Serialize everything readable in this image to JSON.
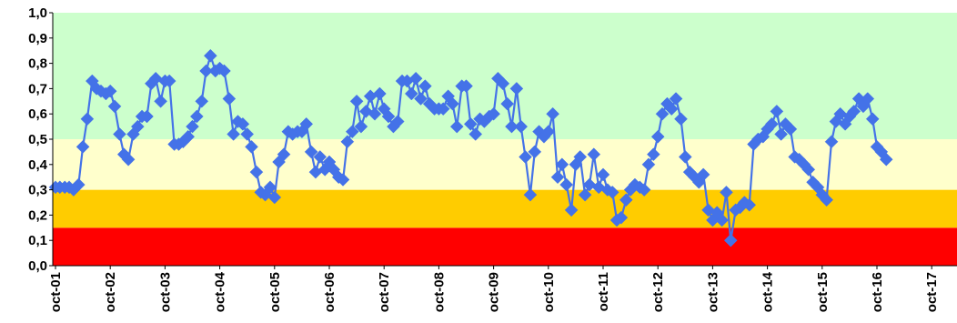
{
  "chart_data": {
    "type": "line",
    "title": "",
    "xlabel": "",
    "ylabel": "",
    "ylim": [
      0,
      1
    ],
    "grid": false,
    "legend": "none",
    "y_ticks": [
      "0,0",
      "0,1",
      "0,2",
      "0,3",
      "0,4",
      "0,5",
      "0,6",
      "0,7",
      "0,8",
      "0,9",
      "1,0"
    ],
    "x_ticks": [
      "oct-01",
      "oct-02",
      "oct-03",
      "oct-04",
      "oct-05",
      "oct-06",
      "oct-07",
      "oct-08",
      "oct-09",
      "oct-10",
      "oct-11",
      "oct-12",
      "oct-13",
      "oct-14",
      "oct-15",
      "oct-16",
      "oct-17"
    ],
    "bands": [
      {
        "from": 0.0,
        "to": 0.15,
        "color": "#ff0000"
      },
      {
        "from": 0.15,
        "to": 0.3,
        "color": "#ffcc00"
      },
      {
        "from": 0.3,
        "to": 0.5,
        "color": "#ffffcc"
      },
      {
        "from": 0.5,
        "to": 1.0,
        "color": "#ccffcc"
      }
    ],
    "series": [
      {
        "color": "#4472e8",
        "marker": "diamond",
        "x_unit": "years since oct-01",
        "points": [
          [
            0.0,
            0.31
          ],
          [
            0.08,
            0.31
          ],
          [
            0.17,
            0.31
          ],
          [
            0.25,
            0.31
          ],
          [
            0.33,
            0.3
          ],
          [
            0.42,
            0.32
          ],
          [
            0.5,
            0.47
          ],
          [
            0.58,
            0.58
          ],
          [
            0.67,
            0.73
          ],
          [
            0.75,
            0.7
          ],
          [
            0.83,
            0.69
          ],
          [
            0.92,
            0.68
          ],
          [
            1.0,
            0.69
          ],
          [
            1.08,
            0.63
          ],
          [
            1.17,
            0.52
          ],
          [
            1.25,
            0.44
          ],
          [
            1.33,
            0.42
          ],
          [
            1.42,
            0.52
          ],
          [
            1.5,
            0.55
          ],
          [
            1.58,
            0.59
          ],
          [
            1.67,
            0.59
          ],
          [
            1.75,
            0.72
          ],
          [
            1.83,
            0.74
          ],
          [
            1.92,
            0.65
          ],
          [
            2.0,
            0.73
          ],
          [
            2.08,
            0.73
          ],
          [
            2.17,
            0.48
          ],
          [
            2.25,
            0.48
          ],
          [
            2.33,
            0.49
          ],
          [
            2.42,
            0.51
          ],
          [
            2.5,
            0.55
          ],
          [
            2.58,
            0.59
          ],
          [
            2.67,
            0.65
          ],
          [
            2.75,
            0.77
          ],
          [
            2.83,
            0.83
          ],
          [
            2.92,
            0.77
          ],
          [
            3.0,
            0.78
          ],
          [
            3.08,
            0.77
          ],
          [
            3.17,
            0.66
          ],
          [
            3.25,
            0.52
          ],
          [
            3.33,
            0.57
          ],
          [
            3.42,
            0.56
          ],
          [
            3.5,
            0.52
          ],
          [
            3.58,
            0.47
          ],
          [
            3.67,
            0.37
          ],
          [
            3.75,
            0.29
          ],
          [
            3.83,
            0.28
          ],
          [
            3.92,
            0.31
          ],
          [
            4.0,
            0.27
          ],
          [
            4.08,
            0.41
          ],
          [
            4.17,
            0.44
          ],
          [
            4.25,
            0.53
          ],
          [
            4.33,
            0.52
          ],
          [
            4.42,
            0.53
          ],
          [
            4.5,
            0.53
          ],
          [
            4.58,
            0.56
          ],
          [
            4.67,
            0.45
          ],
          [
            4.75,
            0.37
          ],
          [
            4.83,
            0.43
          ],
          [
            4.92,
            0.38
          ],
          [
            5.0,
            0.41
          ],
          [
            5.08,
            0.38
          ],
          [
            5.17,
            0.35
          ],
          [
            5.25,
            0.34
          ],
          [
            5.33,
            0.49
          ],
          [
            5.42,
            0.53
          ],
          [
            5.5,
            0.65
          ],
          [
            5.58,
            0.55
          ],
          [
            5.67,
            0.61
          ],
          [
            5.75,
            0.67
          ],
          [
            5.83,
            0.6
          ],
          [
            5.92,
            0.68
          ],
          [
            6.0,
            0.62
          ],
          [
            6.08,
            0.59
          ],
          [
            6.17,
            0.55
          ],
          [
            6.25,
            0.57
          ],
          [
            6.33,
            0.73
          ],
          [
            6.42,
            0.73
          ],
          [
            6.5,
            0.68
          ],
          [
            6.58,
            0.74
          ],
          [
            6.67,
            0.66
          ],
          [
            6.75,
            0.71
          ],
          [
            6.83,
            0.64
          ],
          [
            6.92,
            0.62
          ],
          [
            7.0,
            0.62
          ],
          [
            7.08,
            0.62
          ],
          [
            7.17,
            0.67
          ],
          [
            7.25,
            0.64
          ],
          [
            7.33,
            0.55
          ],
          [
            7.42,
            0.71
          ],
          [
            7.5,
            0.71
          ],
          [
            7.58,
            0.56
          ],
          [
            7.67,
            0.52
          ],
          [
            7.75,
            0.58
          ],
          [
            7.83,
            0.57
          ],
          [
            7.92,
            0.59
          ],
          [
            8.0,
            0.6
          ],
          [
            8.08,
            0.74
          ],
          [
            8.17,
            0.72
          ],
          [
            8.25,
            0.64
          ],
          [
            8.33,
            0.55
          ],
          [
            8.42,
            0.7
          ],
          [
            8.5,
            0.55
          ],
          [
            8.58,
            0.43
          ],
          [
            8.67,
            0.28
          ],
          [
            8.75,
            0.45
          ],
          [
            8.83,
            0.53
          ],
          [
            8.92,
            0.51
          ],
          [
            9.0,
            0.53
          ],
          [
            9.08,
            0.6
          ],
          [
            9.17,
            0.35
          ],
          [
            9.25,
            0.4
          ],
          [
            9.33,
            0.32
          ],
          [
            9.42,
            0.22
          ],
          [
            9.5,
            0.4
          ],
          [
            9.58,
            0.43
          ],
          [
            9.67,
            0.28
          ],
          [
            9.75,
            0.32
          ],
          [
            9.83,
            0.44
          ],
          [
            9.92,
            0.31
          ],
          [
            10.0,
            0.36
          ],
          [
            10.08,
            0.3
          ],
          [
            10.17,
            0.29
          ],
          [
            10.25,
            0.18
          ],
          [
            10.33,
            0.19
          ],
          [
            10.42,
            0.26
          ],
          [
            10.5,
            0.3
          ],
          [
            10.58,
            0.32
          ],
          [
            10.67,
            0.31
          ],
          [
            10.75,
            0.3
          ],
          [
            10.83,
            0.4
          ],
          [
            10.92,
            0.44
          ],
          [
            11.0,
            0.51
          ],
          [
            11.08,
            0.6
          ],
          [
            11.17,
            0.64
          ],
          [
            11.25,
            0.62
          ],
          [
            11.33,
            0.66
          ],
          [
            11.42,
            0.58
          ],
          [
            11.5,
            0.43
          ],
          [
            11.58,
            0.37
          ],
          [
            11.67,
            0.35
          ],
          [
            11.75,
            0.33
          ],
          [
            11.83,
            0.36
          ],
          [
            11.92,
            0.22
          ],
          [
            12.0,
            0.18
          ],
          [
            12.08,
            0.21
          ],
          [
            12.17,
            0.18
          ],
          [
            12.25,
            0.29
          ],
          [
            12.33,
            0.1
          ],
          [
            12.42,
            0.22
          ],
          [
            12.5,
            0.23
          ],
          [
            12.58,
            0.25
          ],
          [
            12.67,
            0.24
          ],
          [
            12.75,
            0.48
          ],
          [
            12.83,
            0.5
          ],
          [
            12.92,
            0.51
          ],
          [
            13.0,
            0.54
          ],
          [
            13.08,
            0.56
          ],
          [
            13.17,
            0.61
          ],
          [
            13.25,
            0.52
          ],
          [
            13.33,
            0.56
          ],
          [
            13.42,
            0.54
          ],
          [
            13.5,
            0.43
          ],
          [
            13.58,
            0.42
          ],
          [
            13.67,
            0.4
          ],
          [
            13.75,
            0.38
          ],
          [
            13.83,
            0.33
          ],
          [
            13.92,
            0.31
          ],
          [
            14.0,
            0.28
          ],
          [
            14.08,
            0.26
          ],
          [
            14.17,
            0.49
          ],
          [
            14.25,
            0.57
          ],
          [
            14.33,
            0.6
          ],
          [
            14.42,
            0.56
          ],
          [
            14.5,
            0.59
          ],
          [
            14.58,
            0.61
          ],
          [
            14.67,
            0.66
          ],
          [
            14.75,
            0.63
          ],
          [
            14.83,
            0.66
          ],
          [
            14.92,
            0.58
          ],
          [
            15.0,
            0.47
          ],
          [
            15.08,
            0.45
          ],
          [
            15.17,
            0.42
          ]
        ]
      }
    ]
  }
}
